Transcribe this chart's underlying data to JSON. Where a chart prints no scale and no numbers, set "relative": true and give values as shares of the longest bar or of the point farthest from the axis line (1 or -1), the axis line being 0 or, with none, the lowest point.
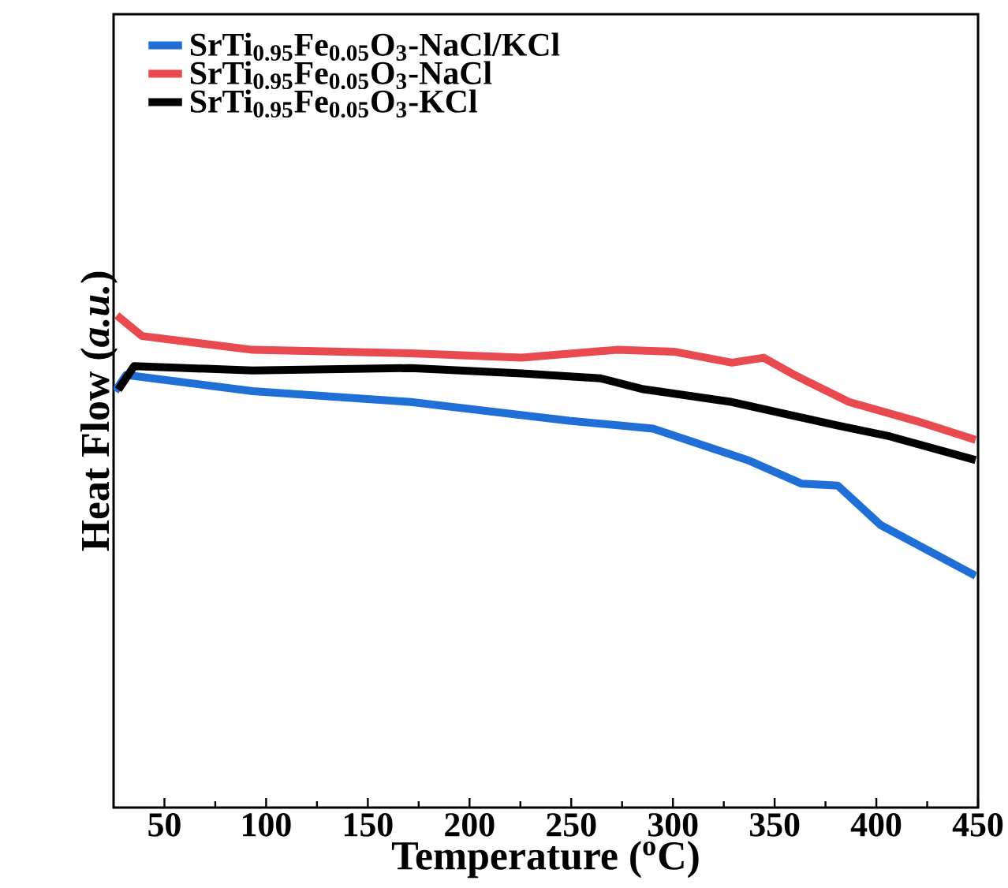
{
  "chart_data": {
    "type": "line",
    "xlabel": "Temperature ($^{o}$C)",
    "ylabel": "Heat Flow (*a.u.*)",
    "relative": true,
    "xlim": [
      25,
      450
    ],
    "xticks": [
      50,
      100,
      150,
      200,
      250,
      300,
      350,
      400,
      450
    ],
    "legend": "top left",
    "series": [
      {
        "name": "SrTi$_{0.95}$Fe$_{0.05}$O$_{3}$-NaCl/KCl",
        "color": "#1f6fd6",
        "x": [
          25.8,
          31.2,
          93.4,
          171.2,
          249,
          290.2,
          336.8,
          363.3,
          381.1,
          402.1,
          448.8
        ],
        "values": [
          0.846,
          0.879,
          0.846,
          0.824,
          0.786,
          0.77,
          0.706,
          0.658,
          0.654,
          0.574,
          0.471
        ]
      },
      {
        "name": "SrTi$_{0.95}$Fe$_{0.05}$O$_{3}$-NaCl",
        "color": "#e84a4f",
        "x": [
          26.6,
          39,
          93.4,
          171.2,
          225.6,
          272.3,
          301,
          329,
          344.6,
          360.2,
          386.6,
          420,
          448.8
        ],
        "values": [
          1.0,
          0.958,
          0.93,
          0.923,
          0.914,
          0.93,
          0.926,
          0.904,
          0.914,
          0.878,
          0.824,
          0.785,
          0.747
        ]
      },
      {
        "name": "SrTi$_{0.95}$Fe$_{0.05}$O$_{3}$-KCl",
        "color": "#000000",
        "x": [
          27.3,
          35.1,
          93.4,
          171.2,
          225.6,
          264.5,
          285.5,
          329,
          381.1,
          406.8,
          448.8
        ],
        "values": [
          0.849,
          0.897,
          0.888,
          0.893,
          0.882,
          0.872,
          0.85,
          0.824,
          0.776,
          0.754,
          0.706
        ]
      }
    ]
  }
}
